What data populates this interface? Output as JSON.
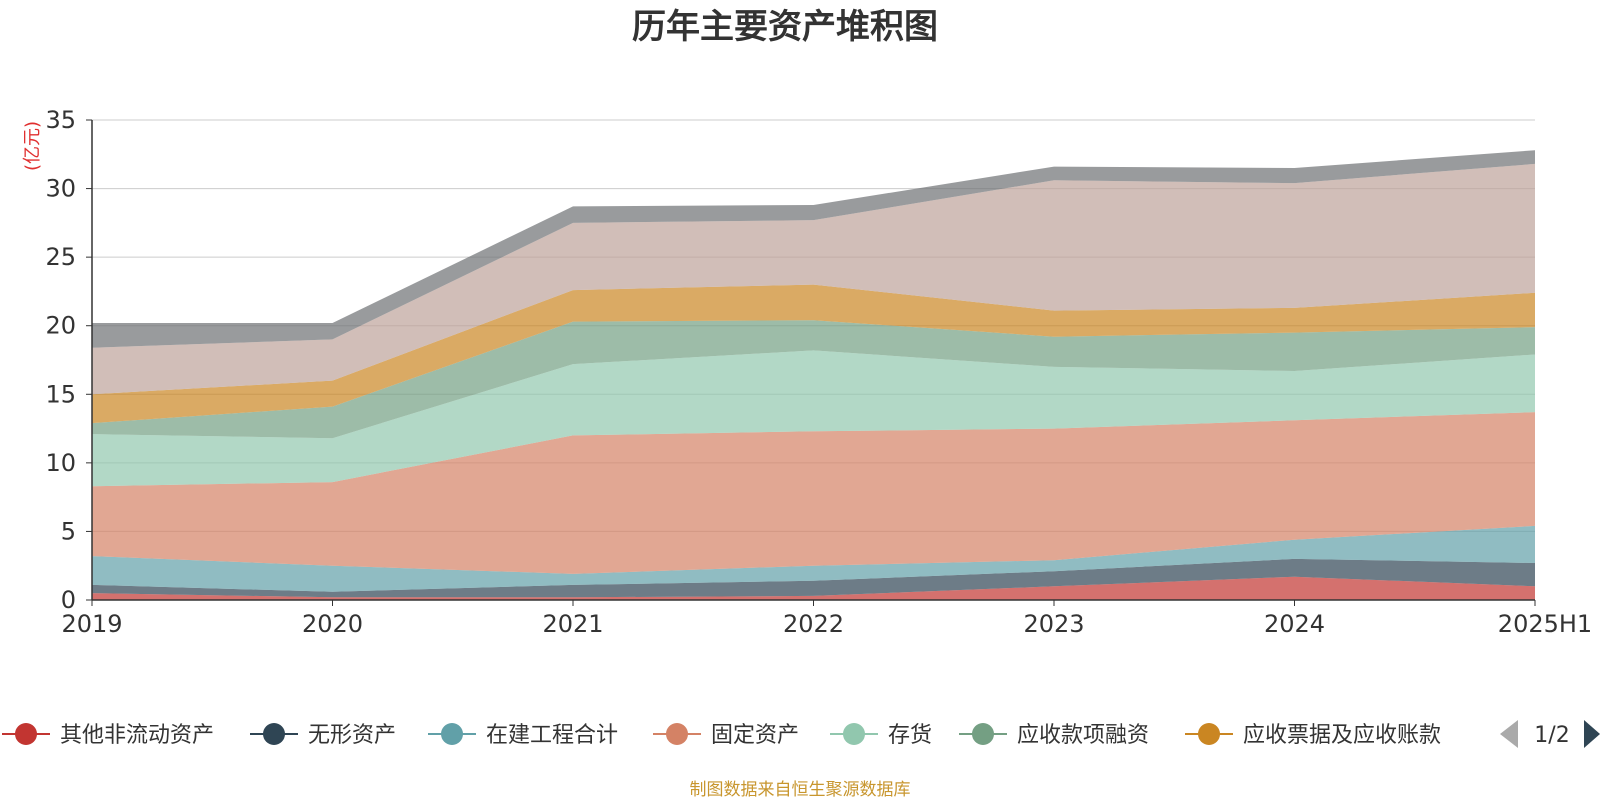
{
  "chart_data": {
    "type": "area",
    "stacked": true,
    "title": "历年主要资产堆积图",
    "ylabel": "(亿元)",
    "categories": [
      "2019",
      "2020",
      "2021",
      "2022",
      "2023",
      "2024",
      "2025H1"
    ],
    "ylim": [
      0,
      35
    ],
    "yticks": [
      0,
      5,
      10,
      15,
      20,
      25,
      30,
      35
    ],
    "grid": true,
    "series": [
      {
        "name": "其他非流动资产",
        "color": "#c23531",
        "values": [
          0.5,
          0.2,
          0.2,
          0.3,
          1.0,
          1.7,
          1.0
        ]
      },
      {
        "name": "无形资产",
        "color": "#2f4554",
        "values": [
          0.6,
          0.4,
          0.9,
          1.1,
          1.1,
          1.3,
          1.7
        ]
      },
      {
        "name": "在建工程合计",
        "color": "#61a0a8",
        "values": [
          2.1,
          1.9,
          0.8,
          1.1,
          0.8,
          1.4,
          2.7
        ]
      },
      {
        "name": "固定资产",
        "color": "#d48265",
        "values": [
          5.1,
          6.1,
          10.1,
          9.8,
          9.6,
          8.7,
          8.3
        ]
      },
      {
        "name": "存货",
        "color": "#91c7ae",
        "values": [
          3.8,
          3.2,
          5.2,
          5.9,
          4.5,
          3.6,
          4.2
        ]
      },
      {
        "name": "应收款项融资",
        "color": "#749f83",
        "values": [
          0.8,
          2.3,
          3.1,
          2.2,
          2.2,
          2.8,
          2.0
        ]
      },
      {
        "name": "应收票据及应收账款",
        "color": "#ca8622",
        "values": [
          2.1,
          1.9,
          2.3,
          2.6,
          1.9,
          1.8,
          2.5
        ]
      },
      {
        "name": "",
        "color": "#bda29a",
        "values": [
          3.4,
          3.0,
          4.9,
          4.7,
          9.5,
          9.1,
          9.4
        ]
      },
      {
        "name": "",
        "color": "#6e7074",
        "values": [
          1.8,
          1.2,
          1.2,
          1.1,
          1.0,
          1.1,
          1.0
        ]
      }
    ]
  },
  "legend": {
    "page": "1/2"
  },
  "footer": {
    "source": "制图数据来自恒生聚源数据库"
  }
}
